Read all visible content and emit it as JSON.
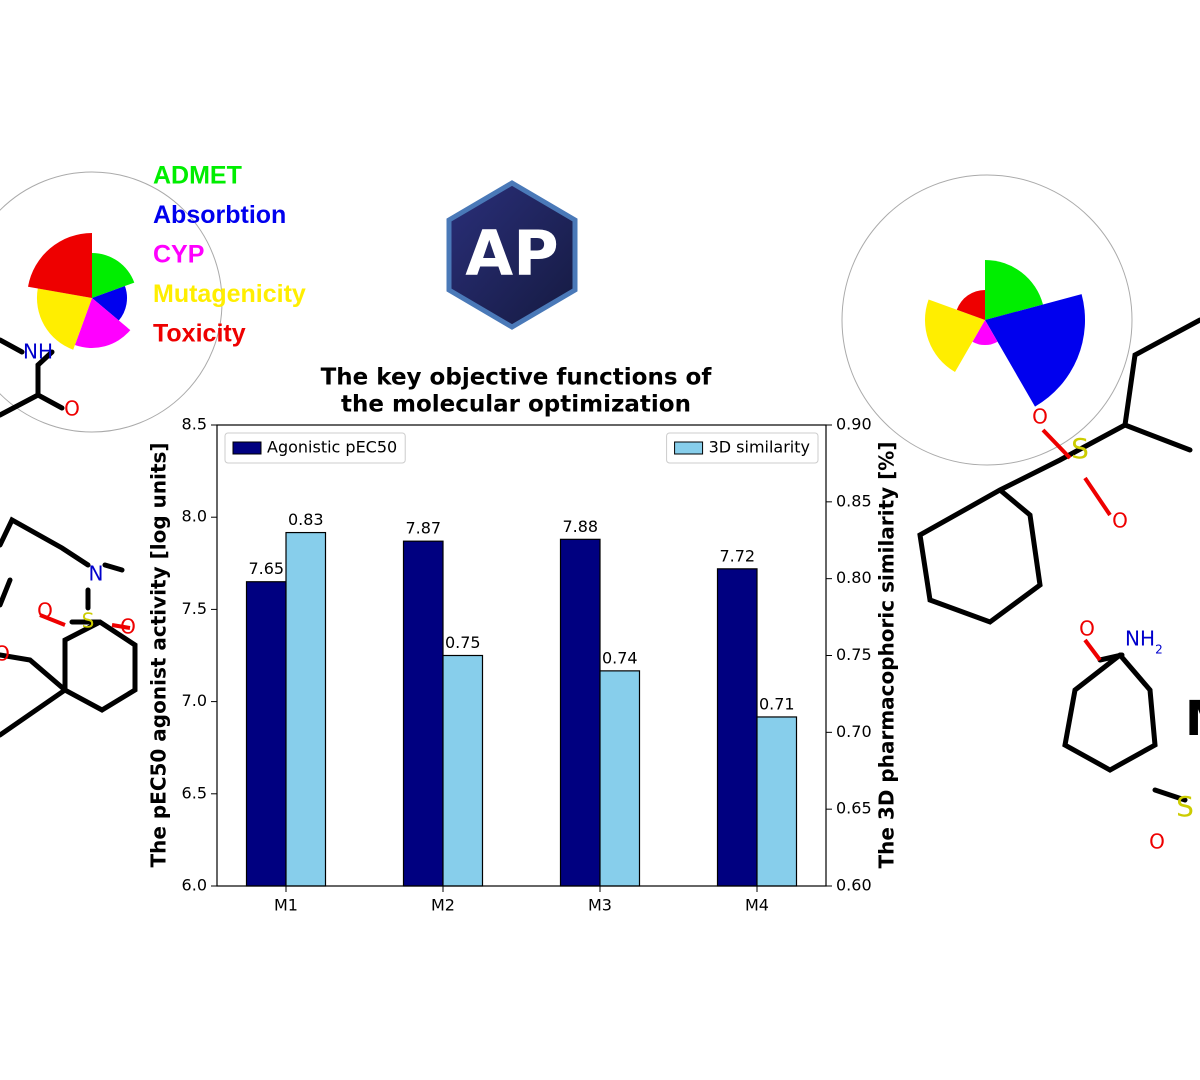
{
  "chart_data": {
    "type": "bar",
    "title": [
      "The key objective functions of",
      "the molecular optimization"
    ],
    "categories": [
      "M1",
      "M2",
      "M3",
      "M4"
    ],
    "ylabel": "The pEC50 agonist activity [log units]",
    "y2label": "The 3D pharmacophoric similarity [%]",
    "series": [
      {
        "name": "Agonistic pEC50",
        "color": "#000080",
        "values": [
          7.65,
          7.87,
          7.88,
          7.72
        ],
        "axis": "y",
        "legend": "upper left"
      },
      {
        "name": "3D similarity",
        "color": "#87ceeb",
        "values": [
          0.83,
          0.75,
          0.74,
          0.71
        ],
        "axis": "y2",
        "legend": "upper right"
      }
    ],
    "ylim": [
      6.0,
      8.5
    ],
    "yticks": [
      {
        "value": 6,
        "label": "6.0"
      },
      6.5,
      {
        "value": 7,
        "label": "7.0"
      },
      7.5,
      {
        "value": 8,
        "label": "8.0"
      },
      8.5
    ],
    "y2lim": [
      0.6,
      0.9
    ],
    "y2ticks": [
      {
        "value": 0.6,
        "label": "0.60"
      },
      0.65,
      {
        "value": 0.7,
        "label": "0.70"
      },
      0.75,
      {
        "value": 0.8,
        "label": "0.80"
      },
      0.85,
      {
        "value": 0.9,
        "label": "0.90"
      }
    ],
    "grid": false
  },
  "property_legend": [
    {
      "label": "ADMET",
      "color": "#00ee00"
    },
    {
      "label": "Absorbtion",
      "color": "#0000ee"
    },
    {
      "label": "CYP",
      "color": "#ff00ff"
    },
    {
      "label": "Mutagenicity",
      "color": "#ffee00"
    },
    {
      "label": "Toxicity",
      "color": "#ee0000"
    }
  ],
  "logo": "AP",
  "atom_labels": [
    "NH",
    "O",
    "N",
    "S",
    "O",
    "O",
    "O",
    "S",
    "O",
    "O",
    "O",
    "NH",
    "2",
    "O",
    "S",
    "M"
  ]
}
